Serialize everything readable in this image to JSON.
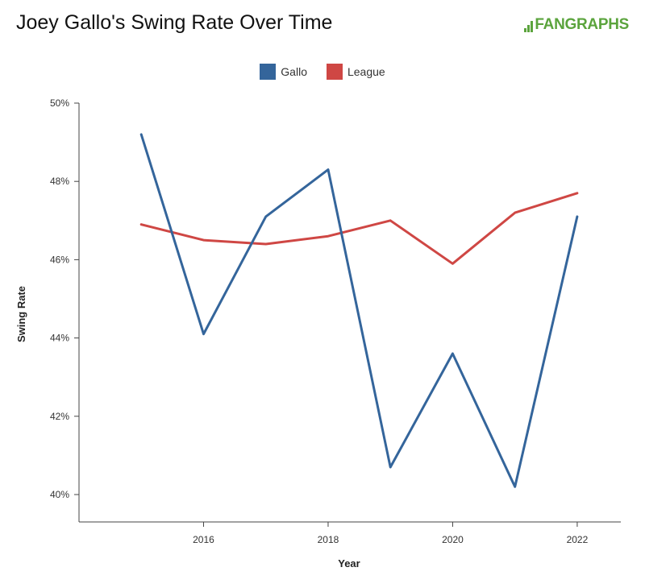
{
  "header": {
    "title": "Joey Gallo's Swing Rate Over Time",
    "logo_text": "FANGRAPHS"
  },
  "chart_data": {
    "type": "line",
    "title": "Joey Gallo's Swing Rate Over Time",
    "xlabel": "Year",
    "ylabel": "Swing Rate",
    "x": [
      2015,
      2016,
      2017,
      2018,
      2019,
      2020,
      2021,
      2022
    ],
    "xlim": [
      2014,
      2022.7
    ],
    "ylim": [
      39.3,
      50
    ],
    "x_ticks": [
      2016,
      2018,
      2020,
      2022
    ],
    "y_ticks": [
      40,
      42,
      44,
      46,
      48,
      50
    ],
    "y_tick_suffix": "%",
    "grid": false,
    "legend_position": "top-center",
    "series": [
      {
        "name": "Gallo",
        "color": "#34659b",
        "values": [
          49.2,
          44.1,
          47.1,
          48.3,
          40.7,
          43.6,
          40.2,
          47.1
        ]
      },
      {
        "name": "League",
        "color": "#cf4744",
        "values": [
          46.9,
          46.5,
          46.4,
          46.6,
          47.0,
          45.9,
          47.2,
          47.7
        ]
      }
    ]
  },
  "colors": {
    "axis": "#444444",
    "brand_green": "#5ba43d"
  }
}
